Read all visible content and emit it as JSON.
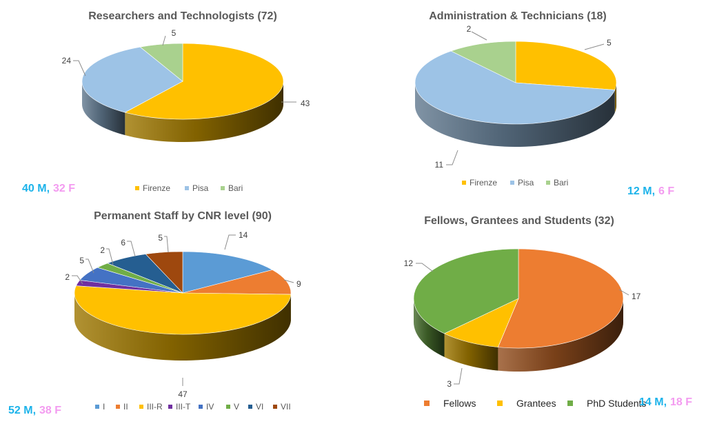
{
  "chart_data": [
    {
      "type": "pie",
      "title": "Researchers and Technologists (72)",
      "categories": [
        "Firenze",
        "Pisa",
        "Bari"
      ],
      "values": [
        43,
        24,
        5
      ],
      "colors": [
        "#ffc000",
        "#9dc3e6",
        "#a9d18e"
      ],
      "legend": "bottom",
      "counts": {
        "male": "40 M,",
        "female": "32 F"
      }
    },
    {
      "type": "pie",
      "title": "Administration & Technicians (18)",
      "categories": [
        "Firenze",
        "Pisa",
        "Bari"
      ],
      "values": [
        5,
        11,
        2
      ],
      "colors": [
        "#ffc000",
        "#9dc3e6",
        "#a9d18e"
      ],
      "legend": "bottom",
      "counts": {
        "male": "12 M,",
        "female": "6 F"
      }
    },
    {
      "type": "pie",
      "title": "Permanent Staff by CNR level (90)",
      "categories": [
        "I",
        "II",
        "III-R",
        "III-T",
        "IV",
        "V",
        "VI",
        "VII"
      ],
      "values": [
        14,
        9,
        47,
        2,
        5,
        2,
        6,
        5
      ],
      "colors": [
        "#5b9bd5",
        "#ed7d31",
        "#ffc000",
        "#7030a0",
        "#4472c4",
        "#70ad47",
        "#255e91",
        "#9e480e"
      ],
      "legend": "bottom",
      "counts": {
        "male": "52 M,",
        "female": "38 F"
      }
    },
    {
      "type": "pie",
      "title": "Fellows, Grantees and Students (32)",
      "categories": [
        "Fellows",
        "Grantees",
        "PhD Students"
      ],
      "values": [
        17,
        3,
        12
      ],
      "colors": [
        "#ed7d31",
        "#ffc000",
        "#70ad47"
      ],
      "legend": "bottom",
      "counts": {
        "male": "14 M,",
        "female": "18 F"
      }
    }
  ]
}
